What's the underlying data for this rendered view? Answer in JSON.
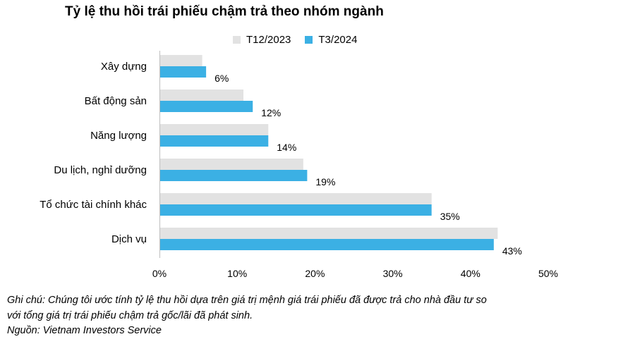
{
  "chart_data": {
    "type": "bar",
    "orientation": "horizontal",
    "title": "Tỷ lệ thu hồi trái phiếu chậm trả theo nhóm ngành",
    "categories": [
      "Xây dựng",
      "Bất động sản",
      "Năng lượng",
      "Du lịch, nghỉ dưỡng",
      "Tổ chức tài chính khác",
      "Dịch vụ"
    ],
    "series": [
      {
        "name": "T12/2023",
        "color": "#e2e2e2",
        "values": [
          5.5,
          10.8,
          14.0,
          18.5,
          35.0,
          43.5
        ]
      },
      {
        "name": "T3/2024",
        "color": "#3bb0e4",
        "values": [
          6,
          12,
          14,
          19,
          35,
          43
        ]
      }
    ],
    "data_labels": [
      "6%",
      "12%",
      "14%",
      "19%",
      "35%",
      "43%"
    ],
    "xlim": [
      0,
      50
    ],
    "xticks": [
      0,
      10,
      20,
      30,
      40,
      50
    ],
    "xtick_labels": [
      "0%",
      "10%",
      "20%",
      "30%",
      "40%",
      "50%"
    ],
    "xlabel": "",
    "ylabel": "",
    "grid": false,
    "legend_position": "top"
  },
  "notes": {
    "line1": "Ghi chú: Chúng tôi ước tính tỷ lệ thu hồi dựa trên giá trị mệnh giá trái phiếu đã được trả cho nhà đầu tư so",
    "line2": "với tổng giá trị trái phiếu chậm trả gốc/lãi đã phát sinh.",
    "source": "Nguồn: Vietnam Investors Service"
  }
}
